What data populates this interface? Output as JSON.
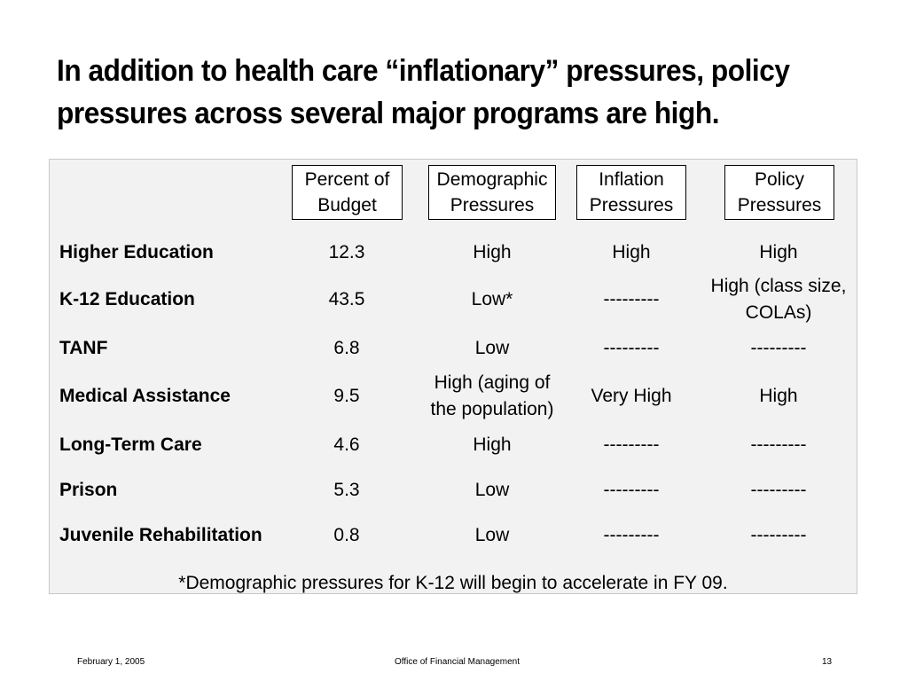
{
  "title": {
    "line1": "In addition to health care “inflationary” pressures, policy",
    "line2": "pressures across several major programs are high."
  },
  "table": {
    "columns": [
      {
        "line1": "Percent of",
        "line2": "Budget"
      },
      {
        "line1": "Demographic",
        "line2": "Pressures"
      },
      {
        "line1": "Inflation",
        "line2": "Pressures"
      },
      {
        "line1": "Policy",
        "line2": "Pressures"
      }
    ],
    "rows": [
      {
        "label": "Higher Education",
        "budget": "12.3",
        "demographic": [
          "High"
        ],
        "inflation": [
          "High"
        ],
        "policy": [
          "High"
        ]
      },
      {
        "label": "K-12 Education",
        "budget": "43.5",
        "demographic": [
          "Low*"
        ],
        "inflation": [
          "---------"
        ],
        "policy": [
          "High (class size,",
          "COLAs)"
        ]
      },
      {
        "label": "TANF",
        "budget": "6.8",
        "demographic": [
          "Low"
        ],
        "inflation": [
          "---------"
        ],
        "policy": [
          "---------"
        ]
      },
      {
        "label": "Medical Assistance",
        "budget": "9.5",
        "demographic": [
          "High (aging of",
          "the population)"
        ],
        "inflation": [
          "Very High"
        ],
        "policy": [
          "High"
        ]
      },
      {
        "label": "Long-Term Care",
        "budget": "4.6",
        "demographic": [
          "High"
        ],
        "inflation": [
          "---------"
        ],
        "policy": [
          "---------"
        ]
      },
      {
        "label": "Prison",
        "budget": "5.3",
        "demographic": [
          "Low"
        ],
        "inflation": [
          "---------"
        ],
        "policy": [
          "---------"
        ]
      },
      {
        "label": "Juvenile Rehabilitation",
        "budget": "0.8",
        "demographic": [
          "Low"
        ],
        "inflation": [
          "---------"
        ],
        "policy": [
          "---------"
        ]
      }
    ],
    "footnote": "*Demographic pressures for K-12 will begin to accelerate in FY 09."
  },
  "footer": {
    "date": "February 1, 2005",
    "office": "Office of Financial Management",
    "page": "13"
  }
}
